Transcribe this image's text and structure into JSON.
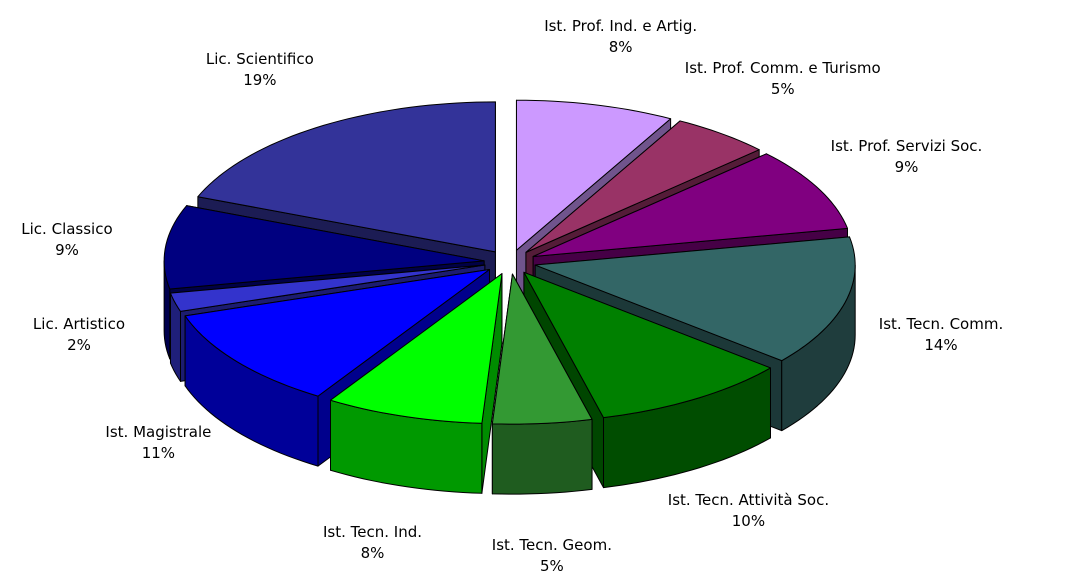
{
  "chart_data": {
    "type": "pie",
    "categories": [
      "Ist. Prof. Ind. e Artig.",
      "Ist. Prof. Comm. e Turismo",
      "Ist. Prof. Servizi Soc.",
      "Ist. Tecn. Comm.",
      "Ist. Tecn. Attività Soc.",
      "Ist. Tecn. Geom.",
      "Ist. Tecn. Ind.",
      "Ist. Magistrale",
      "Lic. Artistico",
      "Lic. Classico",
      "Lic. Scientifico"
    ],
    "values": [
      8,
      5,
      9,
      14,
      10,
      5,
      8,
      11,
      2,
      9,
      19
    ],
    "value_labels": [
      "8%",
      "5%",
      "9%",
      "14%",
      "10%",
      "5%",
      "8%",
      "11%",
      "2%",
      "9%",
      "19%"
    ],
    "colors": [
      "#cc99ff",
      "#993366",
      "#800080",
      "#336666",
      "#008000",
      "#339933",
      "#00ff00",
      "#0000ff",
      "#3333cc",
      "#000080",
      "#333399"
    ],
    "three_d": true,
    "exploded": true
  }
}
